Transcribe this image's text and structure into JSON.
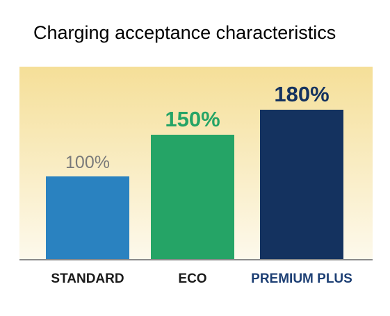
{
  "chart_data": {
    "type": "bar",
    "title": "Charging acceptance characteristics",
    "categories": [
      "STANDARD",
      "ECO",
      "PREMIUM PLUS"
    ],
    "values": [
      100,
      150,
      180
    ],
    "value_labels": [
      "100%",
      "150%",
      "180%"
    ],
    "unit": "%",
    "ylim": [
      0,
      185
    ],
    "grid": false,
    "legend": "none",
    "bar_colors": [
      "#2a82c0",
      "#25a466",
      "#14325f"
    ],
    "value_label_colors": [
      "#7a7a7a",
      "#25a466",
      "#14325f"
    ],
    "category_label_colors": [
      "#1a1a1a",
      "#1a1a1a",
      "#1d3f74"
    ],
    "plot_background_top": "#f5df98",
    "plot_background_bottom": "#fdf9ec",
    "axis_color": "#8a8a8a"
  }
}
